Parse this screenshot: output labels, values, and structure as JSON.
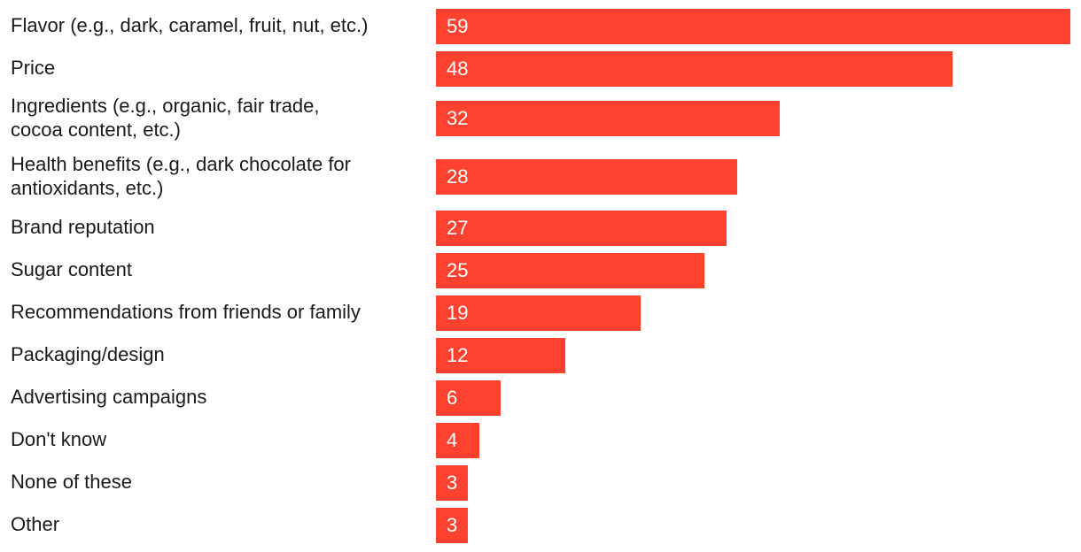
{
  "chart_data": {
    "type": "bar",
    "orientation": "horizontal",
    "title": "",
    "xlabel": "",
    "ylabel": "",
    "xlim": [
      0,
      59
    ],
    "grid": false,
    "bar_color": "#ff4130",
    "label_color": "#ffffff",
    "categories": [
      [
        "Flavor (e.g., dark, caramel, fruit, nut, etc.)"
      ],
      [
        "Price"
      ],
      [
        "Ingredients (e.g., organic, fair trade,",
        "cocoa content, etc.)"
      ],
      [
        "Health benefits (e.g., dark chocolate for",
        "antioxidants, etc.)"
      ],
      [
        "Brand reputation"
      ],
      [
        "Sugar content"
      ],
      [
        "Recommendations from friends or family"
      ],
      [
        "Packaging/design"
      ],
      [
        "Advertising campaigns"
      ],
      [
        "Don't know"
      ],
      [
        "None of these"
      ],
      [
        "Other"
      ]
    ],
    "values": [
      59,
      48,
      32,
      28,
      27,
      25,
      19,
      12,
      6,
      4,
      3,
      3
    ]
  }
}
